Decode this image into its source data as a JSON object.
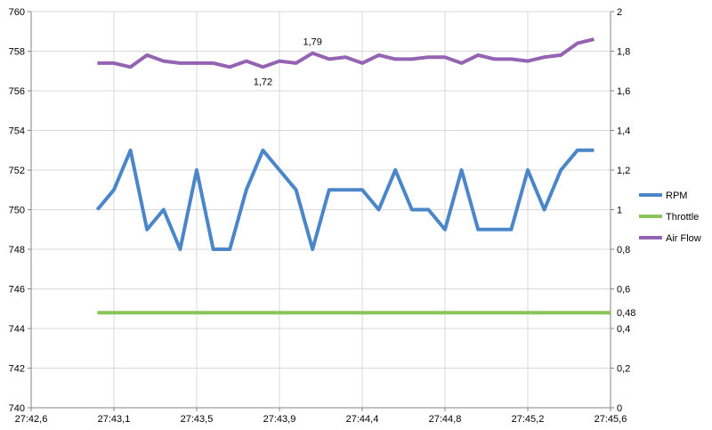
{
  "chart_data": {
    "type": "line",
    "x_tick_labels": [
      "27:42,6",
      "27:43,1",
      "27:43,5",
      "27:43,9",
      "27:44,4",
      "27:44,8",
      "27:45,2",
      "27:45,6"
    ],
    "x_range_index": [
      0,
      35
    ],
    "y_left": {
      "min": 740,
      "max": 760,
      "ticks": [
        "740",
        "742",
        "744",
        "746",
        "748",
        "750",
        "752",
        "754",
        "756",
        "758",
        "760"
      ]
    },
    "y_right": {
      "min": 0,
      "max": 2,
      "ticks": [
        "0",
        "0,2",
        "0,4",
        "0,6",
        "0,8",
        "1",
        "1,2",
        "1,4",
        "1,6",
        "1,8",
        "2"
      ]
    },
    "grid": true,
    "legend_position": "right",
    "series": [
      {
        "name": "RPM",
        "axis": "left",
        "color": "#4a86c8",
        "start_index": 4,
        "values": [
          750,
          751,
          753,
          749,
          750,
          748,
          752,
          748,
          748,
          751,
          753,
          752,
          751,
          748,
          751,
          751,
          751,
          750,
          752,
          750,
          750,
          749,
          752,
          749,
          749,
          749,
          752,
          750,
          752,
          753,
          753
        ]
      },
      {
        "name": "Throttle",
        "axis": "right",
        "color": "#8bc45a",
        "start_index": 4,
        "values": [
          0.48,
          0.48,
          0.48,
          0.48,
          0.48,
          0.48,
          0.48,
          0.48,
          0.48,
          0.48,
          0.48,
          0.48,
          0.48,
          0.48,
          0.48,
          0.48,
          0.48,
          0.48,
          0.48,
          0.48,
          0.48,
          0.48,
          0.48,
          0.48,
          0.48,
          0.48,
          0.48,
          0.48,
          0.48,
          0.48,
          0.48,
          0.48
        ]
      },
      {
        "name": "Air Flow",
        "axis": "right",
        "color": "#9463b3",
        "start_index": 4,
        "values": [
          1.74,
          1.74,
          1.72,
          1.78,
          1.75,
          1.74,
          1.74,
          1.74,
          1.72,
          1.75,
          1.72,
          1.75,
          1.74,
          1.79,
          1.76,
          1.77,
          1.74,
          1.78,
          1.76,
          1.76,
          1.77,
          1.77,
          1.74,
          1.78,
          1.76,
          1.76,
          1.75,
          1.77,
          1.78,
          1.84,
          1.86
        ]
      }
    ],
    "annotations": [
      {
        "text": "1,79",
        "series": "Air Flow",
        "index": 17,
        "position": "above"
      },
      {
        "text": "1,72",
        "series": "Air Flow",
        "index": 14,
        "position": "below"
      },
      {
        "text": "0,48",
        "series": "Throttle",
        "index": 35,
        "position": "right"
      }
    ]
  }
}
